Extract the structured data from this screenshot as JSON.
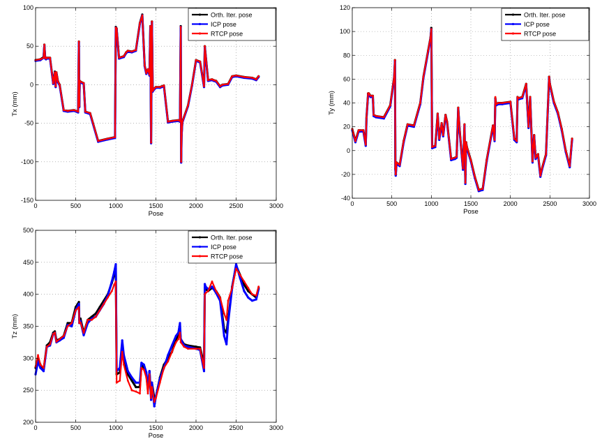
{
  "legend_labels": [
    "Orth. Iter. pose",
    "ICP pose",
    "RTCP pose"
  ],
  "colors": {
    "orth": "#000000",
    "icp": "#0000ff",
    "rtcp": "#ff0000",
    "grid": "#888888"
  },
  "chart_data": [
    {
      "type": "line",
      "xlabel": "Pose",
      "ylabel": "Tx (mm)",
      "xlim": [
        0,
        3000
      ],
      "ylim": [
        -150,
        100
      ],
      "xticks": [
        0,
        500,
        1000,
        1500,
        2000,
        2500,
        3000
      ],
      "yticks": [
        -150,
        -100,
        -50,
        0,
        50,
        100
      ],
      "grid": true,
      "legend": "top-right",
      "x": [
        0,
        60,
        100,
        110,
        120,
        130,
        140,
        180,
        220,
        240,
        250,
        260,
        270,
        280,
        300,
        350,
        400,
        480,
        530,
        540,
        545,
        550,
        560,
        600,
        620,
        680,
        780,
        900,
        990,
        1000,
        1010,
        1040,
        1100,
        1130,
        1150,
        1200,
        1250,
        1300,
        1330,
        1360,
        1380,
        1400,
        1420,
        1430,
        1440,
        1450,
        1460,
        1480,
        1500,
        1550,
        1600,
        1650,
        1700,
        1780,
        1800,
        1810,
        1815,
        1820,
        1830,
        1900,
        1950,
        2000,
        2050,
        2100,
        2110,
        2150,
        2200,
        2220,
        2250,
        2300,
        2330,
        2400,
        2450,
        2500,
        2600,
        2700,
        2750,
        2780
      ],
      "series": [
        {
          "name": "Orth. Iter. pose",
          "values": [
            32,
            33,
            36,
            52,
            35,
            34,
            35,
            35,
            2,
            17,
            -2,
            16,
            10,
            4,
            0,
            -33,
            -34,
            -33,
            -35,
            56,
            -28,
            5,
            4,
            2,
            -35,
            -37,
            -73,
            -70,
            -68,
            75,
            73,
            35,
            37,
            42,
            44,
            43,
            45,
            80,
            91,
            25,
            15,
            20,
            13,
            76,
            -75,
            82,
            -8,
            -5,
            -3,
            -3,
            -1,
            -48,
            -47,
            -46,
            -47,
            76,
            -100,
            -65,
            -48,
            -27,
            0,
            32,
            30,
            -2,
            50,
            6,
            7,
            6,
            5,
            -2,
            0,
            1,
            11,
            12,
            10,
            9,
            7,
            11
          ]
        },
        {
          "name": "ICP pose",
          "values": [
            31,
            32,
            35,
            51,
            34,
            33,
            34,
            34,
            1,
            16,
            -3,
            15,
            9,
            3,
            -1,
            -34,
            -35,
            -34,
            -36,
            55,
            -29,
            4,
            3,
            1,
            -36,
            -38,
            -74,
            -71,
            -69,
            74,
            72,
            34,
            36,
            41,
            43,
            42,
            44,
            79,
            90,
            24,
            14,
            19,
            12,
            75,
            -76,
            81,
            -9,
            -6,
            -4,
            -4,
            -2,
            -49,
            -48,
            -47,
            -48,
            75,
            -101,
            -66,
            -49,
            -28,
            -1,
            31,
            29,
            -3,
            49,
            5,
            6,
            5,
            4,
            -3,
            -1,
            0,
            10,
            11,
            9,
            8,
            6,
            10
          ]
        },
        {
          "name": "RTCP pose",
          "values": [
            32,
            33,
            35,
            52,
            35,
            34,
            35,
            35,
            2,
            16,
            -2,
            16,
            10,
            4,
            0,
            -33,
            -34,
            -33,
            -35,
            56,
            -28,
            5,
            4,
            2,
            -35,
            -37,
            -73,
            -70,
            -68,
            74,
            73,
            35,
            37,
            42,
            44,
            43,
            45,
            80,
            90,
            25,
            15,
            20,
            13,
            76,
            -75,
            82,
            -8,
            -5,
            -3,
            -3,
            -1,
            -48,
            -47,
            -46,
            -47,
            75,
            -100,
            -65,
            -48,
            -27,
            0,
            32,
            30,
            -2,
            50,
            6,
            7,
            6,
            5,
            -2,
            0,
            1,
            11,
            12,
            10,
            9,
            7,
            11
          ]
        }
      ]
    },
    {
      "type": "line",
      "xlabel": "Pose",
      "ylabel": "Ty (mm)",
      "xlim": [
        0,
        3000
      ],
      "ylim": [
        -40,
        120
      ],
      "xticks": [
        0,
        500,
        1000,
        1500,
        2000,
        2500,
        3000
      ],
      "yticks": [
        -40,
        -20,
        0,
        20,
        40,
        60,
        80,
        100,
        120
      ],
      "grid": true,
      "legend": "top-right",
      "x": [
        0,
        40,
        80,
        100,
        140,
        170,
        180,
        200,
        210,
        230,
        260,
        270,
        300,
        400,
        480,
        530,
        540,
        545,
        550,
        560,
        600,
        650,
        700,
        780,
        860,
        900,
        960,
        990,
        1000,
        1010,
        1050,
        1080,
        1100,
        1130,
        1150,
        1180,
        1200,
        1250,
        1300,
        1320,
        1340,
        1360,
        1400,
        1420,
        1430,
        1440,
        1450,
        1500,
        1550,
        1600,
        1650,
        1700,
        1780,
        1800,
        1810,
        1820,
        1850,
        1900,
        2000,
        2050,
        2080,
        2090,
        2100,
        2150,
        2200,
        2230,
        2250,
        2280,
        2300,
        2320,
        2350,
        2380,
        2400,
        2450,
        2490,
        2500,
        2550,
        2600,
        2650,
        2700,
        2750,
        2780
      ],
      "series": [
        {
          "name": "Orth. Iter. pose",
          "values": [
            18,
            8,
            17,
            17,
            17,
            5,
            28,
            48,
            48,
            46,
            46,
            30,
            29,
            28,
            38,
            62,
            76,
            -15,
            -20,
            -10,
            -12,
            8,
            22,
            21,
            40,
            62,
            84,
            95,
            103,
            3,
            4,
            31,
            10,
            23,
            13,
            30,
            24,
            -7,
            -6,
            -5,
            36,
            16,
            -15,
            22,
            -27,
            7,
            3,
            -8,
            -22,
            -33,
            -32,
            -8,
            21,
            9,
            44,
            39,
            40,
            40,
            41,
            10,
            8,
            45,
            44,
            45,
            56,
            20,
            45,
            -9,
            13,
            -6,
            -3,
            -21,
            -15,
            -3,
            62,
            56,
            41,
            32,
            18,
            0,
            -13,
            10
          ]
        },
        {
          "name": "ICP pose",
          "values": [
            17,
            7,
            16,
            16,
            16,
            4,
            27,
            47,
            47,
            45,
            45,
            29,
            28,
            27,
            37,
            61,
            75,
            -16,
            -21,
            -11,
            -13,
            7,
            21,
            20,
            39,
            61,
            83,
            94,
            102,
            2,
            3,
            30,
            9,
            22,
            12,
            29,
            23,
            -8,
            -7,
            -6,
            35,
            15,
            -16,
            21,
            -28,
            6,
            2,
            -9,
            -23,
            -34,
            -33,
            -9,
            20,
            8,
            43,
            38,
            39,
            39,
            40,
            9,
            7,
            44,
            43,
            44,
            55,
            19,
            44,
            -10,
            12,
            -7,
            -4,
            -22,
            -16,
            -4,
            61,
            55,
            40,
            31,
            17,
            -1,
            -14,
            9
          ]
        },
        {
          "name": "RTCP pose",
          "values": [
            18,
            8,
            17,
            17,
            17,
            5,
            28,
            48,
            48,
            46,
            46,
            30,
            29,
            28,
            38,
            62,
            76,
            -15,
            -20,
            -10,
            -12,
            8,
            22,
            21,
            40,
            62,
            84,
            95,
            102,
            3,
            4,
            31,
            10,
            23,
            13,
            30,
            24,
            -7,
            -6,
            -5,
            36,
            16,
            -15,
            22,
            -27,
            7,
            3,
            -8,
            -22,
            -33,
            -32,
            -8,
            21,
            9,
            45,
            39,
            40,
            40,
            41,
            10,
            8,
            45,
            44,
            45,
            56,
            20,
            45,
            -9,
            13,
            -6,
            -3,
            -21,
            -15,
            -3,
            62,
            56,
            41,
            32,
            18,
            0,
            -13,
            10
          ]
        }
      ]
    },
    {
      "type": "line",
      "xlabel": "Pose",
      "ylabel": "Tz (mm)",
      "xlim": [
        0,
        3000
      ],
      "ylim": [
        200,
        500
      ],
      "xticks": [
        0,
        500,
        1000,
        1500,
        2000,
        2500,
        3000
      ],
      "yticks": [
        200,
        250,
        300,
        350,
        400,
        450,
        500
      ],
      "grid": true,
      "legend": "top-right",
      "x": [
        0,
        30,
        60,
        100,
        140,
        180,
        220,
        240,
        260,
        300,
        350,
        400,
        450,
        500,
        540,
        545,
        560,
        600,
        650,
        700,
        750,
        800,
        850,
        900,
        950,
        980,
        1000,
        1010,
        1050,
        1080,
        1100,
        1150,
        1200,
        1250,
        1300,
        1320,
        1350,
        1380,
        1400,
        1420,
        1440,
        1450,
        1480,
        1500,
        1550,
        1600,
        1650,
        1700,
        1750,
        1780,
        1800,
        1810,
        1850,
        1900,
        2000,
        2050,
        2100,
        2110,
        2120,
        2150,
        2200,
        2250,
        2300,
        2350,
        2380,
        2400,
        2450,
        2500,
        2550,
        2600,
        2650,
        2700,
        2750,
        2780
      ],
      "series": [
        {
          "name": "Orth. Iter. pose",
          "values": [
            285,
            300,
            290,
            282,
            320,
            325,
            340,
            342,
            328,
            330,
            335,
            355,
            355,
            380,
            388,
            360,
            362,
            340,
            360,
            365,
            370,
            380,
            390,
            400,
            418,
            430,
            440,
            275,
            278,
            320,
            300,
            275,
            265,
            255,
            255,
            290,
            285,
            275,
            252,
            280,
            240,
            262,
            238,
            240,
            270,
            290,
            300,
            310,
            330,
            335,
            345,
            330,
            322,
            320,
            318,
            317,
            290,
            410,
            408,
            405,
            410,
            405,
            395,
            345,
            340,
            360,
            412,
            445,
            430,
            415,
            405,
            400,
            395,
            410
          ]
        },
        {
          "name": "ICP pose",
          "values": [
            275,
            295,
            285,
            280,
            318,
            320,
            338,
            340,
            325,
            328,
            332,
            352,
            350,
            375,
            385,
            355,
            358,
            336,
            355,
            362,
            365,
            375,
            385,
            398,
            420,
            435,
            447,
            280,
            285,
            328,
            305,
            280,
            270,
            262,
            262,
            293,
            290,
            278,
            255,
            280,
            235,
            262,
            225,
            240,
            268,
            285,
            305,
            320,
            335,
            340,
            355,
            330,
            320,
            318,
            315,
            313,
            280,
            416,
            412,
            408,
            412,
            402,
            390,
            335,
            322,
            355,
            410,
            447,
            425,
            405,
            395,
            390,
            392,
            408
          ]
        },
        {
          "name": "RTCP pose",
          "values": [
            287,
            305,
            290,
            285,
            318,
            322,
            338,
            340,
            326,
            330,
            335,
            350,
            355,
            375,
            380,
            355,
            356,
            340,
            360,
            360,
            365,
            375,
            385,
            395,
            405,
            415,
            420,
            262,
            265,
            310,
            290,
            265,
            250,
            248,
            245,
            285,
            282,
            270,
            245,
            275,
            238,
            255,
            232,
            238,
            262,
            285,
            295,
            310,
            325,
            330,
            340,
            325,
            318,
            315,
            315,
            315,
            285,
            400,
            402,
            405,
            420,
            405,
            395,
            370,
            360,
            390,
            410,
            440,
            430,
            420,
            410,
            400,
            398,
            412
          ]
        }
      ]
    }
  ]
}
